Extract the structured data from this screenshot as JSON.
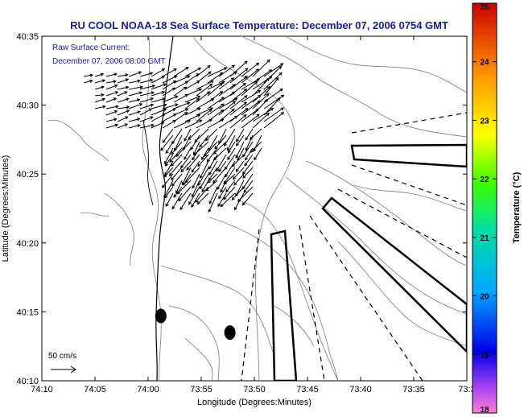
{
  "chart_data": {
    "type": "map",
    "title": "RU COOL  NOAA-18  Sea Surface Temperature:  December 07, 2006 0754 GMT",
    "annotation_lines": [
      "Raw Surface Current:",
      "December 07, 2006 08:00 GMT"
    ],
    "xlabel": "Longitude (Degrees:Minutes)",
    "ylabel": "Latitude (Degrees:Minutes)",
    "x_ticks": [
      "74:10",
      "74:05",
      "74:00",
      "73:55",
      "73:50",
      "73:45",
      "73:40",
      "73:35",
      "73:3"
    ],
    "y_ticks": [
      "40:35",
      "40:30",
      "40:25",
      "40:20",
      "40:15",
      "40:10"
    ],
    "xlim_minutes_west": [
      70,
      30
    ],
    "ylim_minutes_north": [
      10,
      35
    ],
    "scale_label": "50 cm/s",
    "colorbar": {
      "label": "Temperature (°C)",
      "min": 18,
      "max": 25,
      "ticks": [
        "18",
        "19",
        "20",
        "21",
        "22",
        "23",
        "24",
        "25"
      ]
    },
    "markers": [
      {
        "type": "ellipse",
        "lon_min_w": 58.8,
        "lat_min": 14.7
      },
      {
        "type": "ellipse",
        "lon_min_w": 52.3,
        "lat_min": 13.5
      }
    ],
    "accent_color": "#1a1aa6"
  }
}
